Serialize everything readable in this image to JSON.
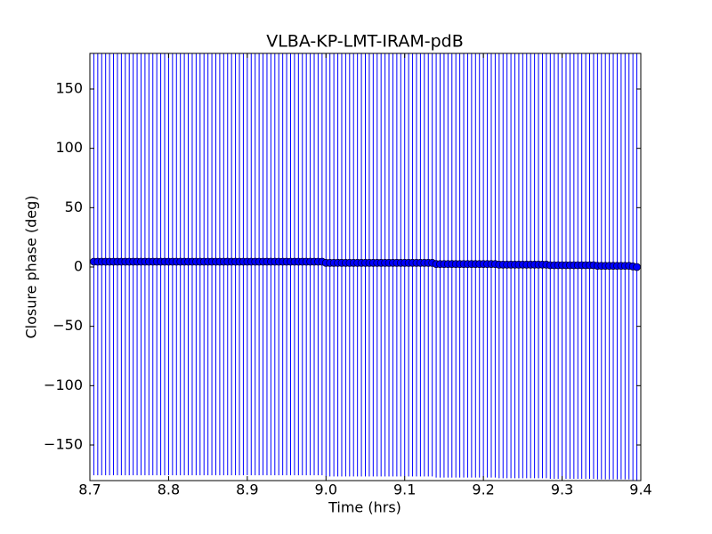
{
  "chart_data": {
    "type": "errorbar",
    "title": "VLBA-KP-LMT-IRAM-pdB",
    "x_label": "Time (hrs)",
    "y_label": "Closure phase (deg)",
    "x": [
      8.705,
      8.71,
      8.715,
      8.72,
      8.725,
      8.73,
      8.735,
      8.74,
      8.745,
      8.75,
      8.755,
      8.76,
      8.765,
      8.77,
      8.775,
      8.78,
      8.785,
      8.79,
      8.795,
      8.8,
      8.805,
      8.81,
      8.815,
      8.82,
      8.825,
      8.83,
      8.835,
      8.84,
      8.845,
      8.85,
      8.855,
      8.86,
      8.865,
      8.87,
      8.875,
      8.88,
      8.885,
      8.89,
      8.895,
      8.9,
      8.905,
      8.91,
      8.915,
      8.92,
      8.925,
      8.93,
      8.935,
      8.94,
      8.945,
      8.95,
      8.955,
      8.96,
      8.965,
      8.97,
      8.975,
      8.98,
      8.985,
      8.99,
      8.995,
      9.0,
      9.005,
      9.01,
      9.015,
      9.02,
      9.025,
      9.03,
      9.035,
      9.04,
      9.045,
      9.05,
      9.055,
      9.06,
      9.065,
      9.07,
      9.075,
      9.08,
      9.085,
      9.09,
      9.095,
      9.1,
      9.105,
      9.11,
      9.115,
      9.12,
      9.125,
      9.13,
      9.135,
      9.14,
      9.145,
      9.15,
      9.155,
      9.16,
      9.165,
      9.17,
      9.175,
      9.18,
      9.185,
      9.19,
      9.195,
      9.2,
      9.205,
      9.21,
      9.215,
      9.22,
      9.225,
      9.23,
      9.235,
      9.24,
      9.245,
      9.25,
      9.255,
      9.26,
      9.265,
      9.27,
      9.275,
      9.28,
      9.285,
      9.29,
      9.295,
      9.3,
      9.305,
      9.31,
      9.315,
      9.32,
      9.325,
      9.33,
      9.335,
      9.34,
      9.345,
      9.35,
      9.355,
      9.36,
      9.365,
      9.37,
      9.375,
      9.38,
      9.385,
      9.39,
      9.395
    ],
    "values": [
      4.5,
      4.5,
      4.5,
      4.5,
      4.5,
      4.5,
      4.5,
      4.5,
      4.5,
      4.5,
      4.5,
      4.5,
      4.5,
      4.5,
      4.5,
      4.5,
      4.5,
      4.5,
      4.5,
      4.5,
      4.5,
      4.5,
      4.5,
      4.5,
      4.5,
      4.5,
      4.5,
      4.5,
      4.5,
      4.5,
      4.5,
      4.5,
      4.5,
      4.5,
      4.5,
      4.5,
      4.5,
      4.5,
      4.5,
      4.5,
      4.5,
      4.5,
      4.5,
      4.5,
      4.5,
      4.5,
      4.5,
      4.5,
      4.5,
      4.5,
      4.5,
      4.5,
      4.5,
      4.5,
      4.5,
      4.5,
      4.5,
      4.5,
      4.5,
      3.5,
      3.5,
      3.5,
      3.5,
      3.5,
      3.5,
      3.5,
      3.5,
      3.5,
      3.5,
      3.5,
      3.5,
      3.5,
      3.5,
      3.5,
      3.5,
      3.5,
      3.5,
      3.5,
      3.5,
      3.5,
      3.5,
      3.5,
      3.5,
      3.5,
      3.5,
      3.5,
      3.5,
      2.5,
      2.5,
      2.5,
      2.5,
      2.5,
      2.5,
      2.5,
      2.5,
      2.5,
      2.5,
      2.5,
      2.5,
      2.5,
      2.5,
      2.5,
      2.5,
      2,
      2,
      2,
      2,
      2,
      2,
      2,
      2,
      2,
      2,
      2,
      2,
      2,
      1.5,
      1.5,
      1.5,
      1.5,
      1.5,
      1.5,
      1.5,
      1.5,
      1.5,
      1.5,
      1.5,
      1.5,
      1,
      1,
      1,
      1,
      1,
      1,
      1,
      1,
      1,
      0.5,
      0
    ],
    "yerr": 180,
    "color": "#0000ff",
    "xlim": [
      8.7,
      9.4
    ],
    "xticks": [
      8.7,
      8.8,
      8.9,
      {
        "value": 9,
        "label": "9.0"
      },
      9.1,
      9.2,
      9.3,
      9.4
    ],
    "ylim": [
      -180,
      180
    ],
    "yticks": [
      {
        "value": -150,
        "label": "−150"
      },
      {
        "value": -100,
        "label": "−100"
      },
      {
        "value": -50,
        "label": "−50"
      },
      0,
      50,
      100,
      150
    ]
  }
}
